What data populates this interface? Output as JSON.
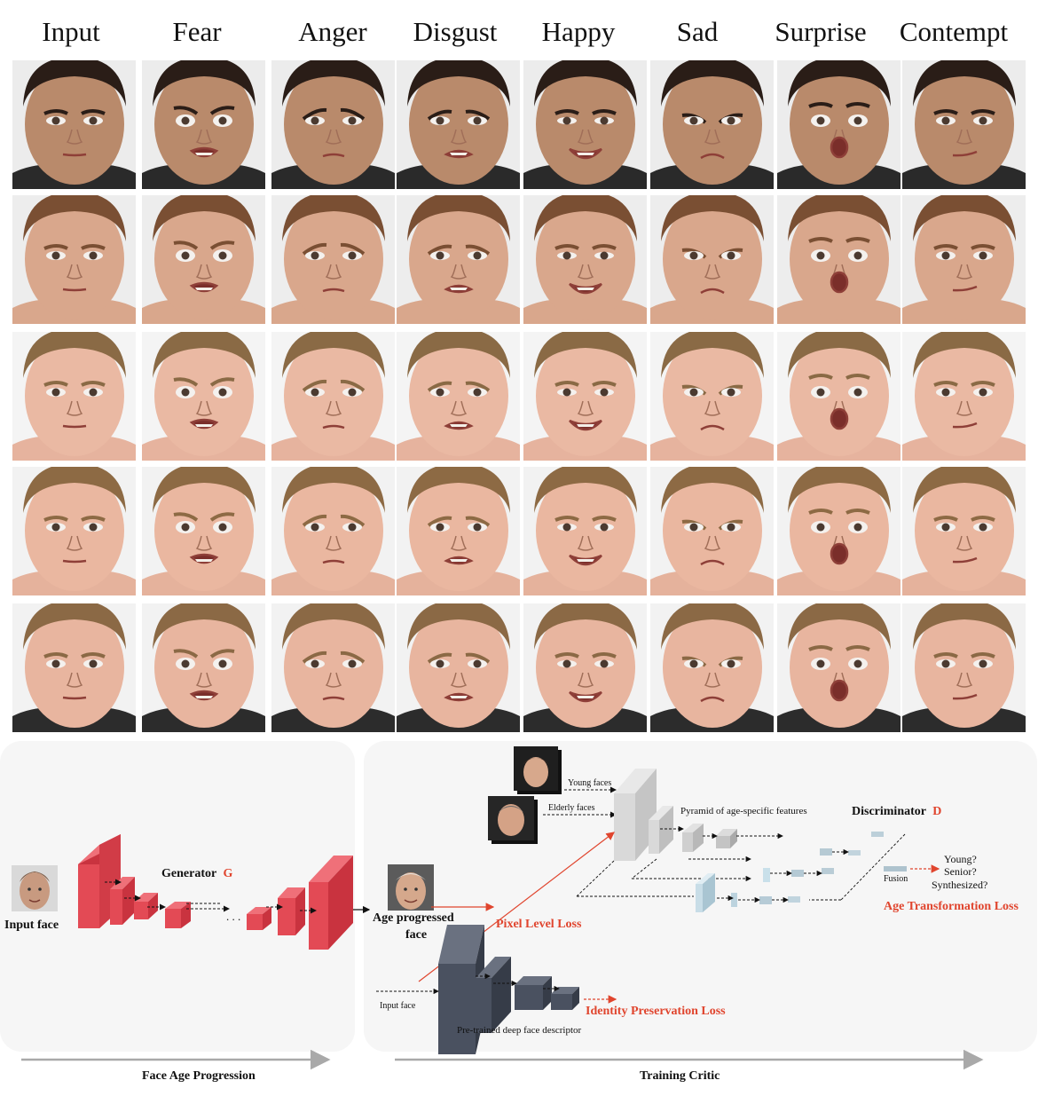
{
  "columns": [
    "Input",
    "Fear",
    "Anger",
    "Disgust",
    "Happy",
    "Sad",
    "Surprise",
    "Contempt"
  ],
  "rows": [
    {
      "subject": "adult-male",
      "skin": "#b98a6b",
      "hair": "#2a1d17",
      "bg": "#ececec",
      "shirt": "#2a2a2a"
    },
    {
      "subject": "adult-female",
      "skin": "#d9a78c",
      "hair": "#7a4f33",
      "bg": "#ededed",
      "shirt": "#d9a78c"
    },
    {
      "subject": "child-1",
      "skin": "#eab9a3",
      "hair": "#8a6a45",
      "bg": "#f4f4f4",
      "shirt": "#e6b39e"
    },
    {
      "subject": "child-2",
      "skin": "#eab7a0",
      "hair": "#8d6a44",
      "bg": "#f2f2f2",
      "shirt": "#e5b29c"
    },
    {
      "subject": "child-3",
      "skin": "#e8b59f",
      "hair": "#8b6945",
      "bg": "#f2f2f2",
      "shirt": "#2c2c2c"
    }
  ],
  "diagram": {
    "left_panel": {
      "input_face_label": "Input face",
      "generator_label": "Generator",
      "generator_symbol": "G",
      "output_label_line1": "Age progressed",
      "output_label_line2": "face",
      "ellipsis": ". . .",
      "arrow_label": "Face Age Progression"
    },
    "right_panel": {
      "young_faces": "Young faces",
      "elderly_faces": "Elderly faces",
      "pyramid_label": "Pyramid of age-specific features",
      "discriminator_label": "Discriminator",
      "discriminator_symbol": "D",
      "young_q": "Young?",
      "senior_q": "Senior?",
      "synth_q": "Synthesized?",
      "fusion": "Fusion",
      "age_loss": "Age Transformation Loss",
      "pixel_loss": "Pixel Level Loss",
      "identity_loss": "Identity Preservation Loss",
      "input_face_small": "Input face",
      "descriptor_label": "Pre-trained deep face descriptor",
      "arrow_label": "Training Critic"
    },
    "colors": {
      "generator_red": "#e34a55",
      "loss_red": "#e0452e",
      "descriptor_dark": "#4a5160",
      "pyramid_gray": "#cfcfcf",
      "fusion_blue": "#bcd3de",
      "panel_bg": "#f6f6f6"
    }
  }
}
